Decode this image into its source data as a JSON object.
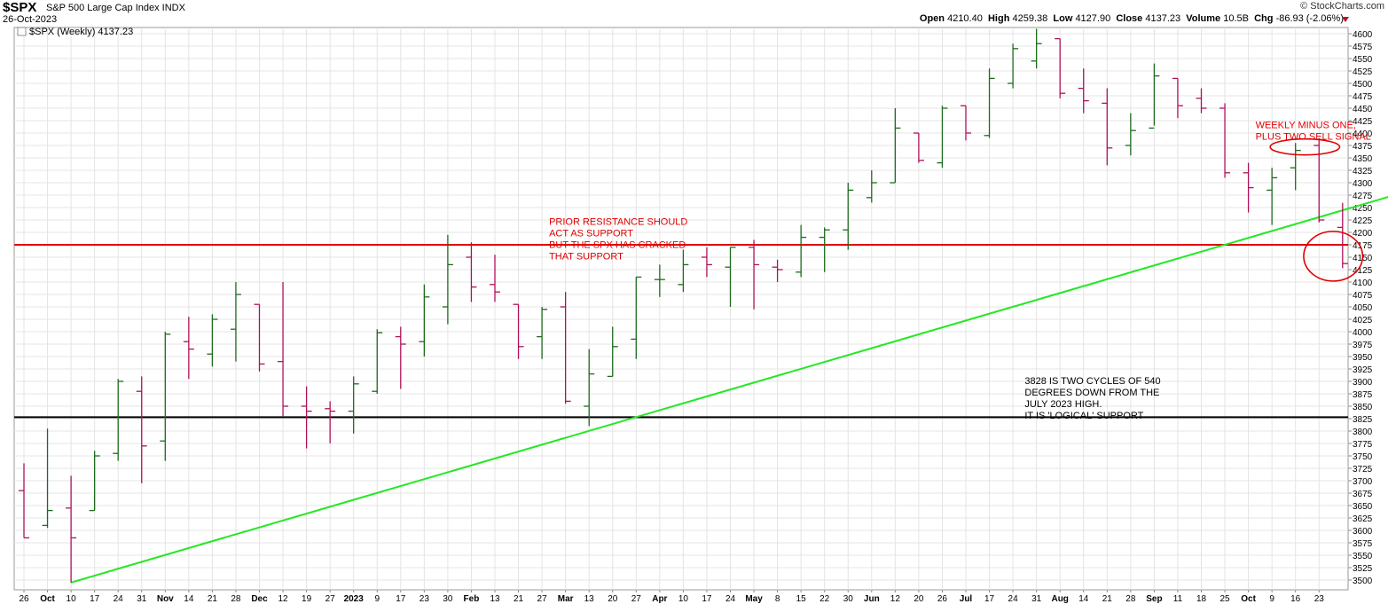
{
  "header": {
    "symbol": "$SPX",
    "name": "S&P 500 Large Cap Index  INDX",
    "date": "26-Oct-2023",
    "credit": "© StockCharts.com",
    "quote": {
      "open_label": "Open",
      "open": "4210.40",
      "high_label": "High",
      "high": "4259.38",
      "low_label": "Low",
      "low": "4127.90",
      "close_label": "Close",
      "close": "4137.23",
      "volume_label": "Volume",
      "volume": "10.5B",
      "chg_label": "Chg",
      "chg": "-86.93 (-2.06%)"
    }
  },
  "colors": {
    "up": "#1c6b1c",
    "down": "#b0105a",
    "resistance": "#e00000",
    "trend": "#22e822",
    "support": "#000000",
    "annotation": "#e00000"
  },
  "chart_data": {
    "type": "ohlc",
    "legend": "$SPX (Weekly) 4137.23",
    "ylim": [
      3490,
      4610
    ],
    "yticks": [
      3500,
      3525,
      3550,
      3575,
      3600,
      3625,
      3650,
      3675,
      3700,
      3725,
      3750,
      3775,
      3800,
      3825,
      3850,
      3875,
      3900,
      3925,
      3950,
      3975,
      4000,
      4025,
      4050,
      4075,
      4100,
      4125,
      4150,
      4175,
      4200,
      4225,
      4250,
      4275,
      4300,
      4325,
      4350,
      4375,
      4400,
      4425,
      4450,
      4475,
      4500,
      4525,
      4550,
      4575,
      4600
    ],
    "xticks": [
      {
        "i": 0,
        "label": "26",
        "bold": false
      },
      {
        "i": 1,
        "label": "Oct",
        "bold": true
      },
      {
        "i": 2,
        "label": "10",
        "bold": false
      },
      {
        "i": 3,
        "label": "17",
        "bold": false
      },
      {
        "i": 4,
        "label": "24",
        "bold": false
      },
      {
        "i": 5,
        "label": "31",
        "bold": false
      },
      {
        "i": 6,
        "label": "Nov",
        "bold": true
      },
      {
        "i": 7,
        "label": "14",
        "bold": false
      },
      {
        "i": 8,
        "label": "21",
        "bold": false
      },
      {
        "i": 9,
        "label": "28",
        "bold": false
      },
      {
        "i": 10,
        "label": "Dec",
        "bold": true
      },
      {
        "i": 11,
        "label": "12",
        "bold": false
      },
      {
        "i": 12,
        "label": "19",
        "bold": false
      },
      {
        "i": 13,
        "label": "27",
        "bold": false
      },
      {
        "i": 14,
        "label": "2023",
        "bold": true
      },
      {
        "i": 15,
        "label": "9",
        "bold": false
      },
      {
        "i": 16,
        "label": "17",
        "bold": false
      },
      {
        "i": 17,
        "label": "23",
        "bold": false
      },
      {
        "i": 18,
        "label": "30",
        "bold": false
      },
      {
        "i": 19,
        "label": "Feb",
        "bold": true
      },
      {
        "i": 20,
        "label": "13",
        "bold": false
      },
      {
        "i": 21,
        "label": "21",
        "bold": false
      },
      {
        "i": 22,
        "label": "27",
        "bold": false
      },
      {
        "i": 23,
        "label": "Mar",
        "bold": true
      },
      {
        "i": 24,
        "label": "13",
        "bold": false
      },
      {
        "i": 25,
        "label": "20",
        "bold": false
      },
      {
        "i": 26,
        "label": "27",
        "bold": false
      },
      {
        "i": 27,
        "label": "Apr",
        "bold": true
      },
      {
        "i": 28,
        "label": "10",
        "bold": false
      },
      {
        "i": 29,
        "label": "17",
        "bold": false
      },
      {
        "i": 30,
        "label": "24",
        "bold": false
      },
      {
        "i": 31,
        "label": "May",
        "bold": true
      },
      {
        "i": 32,
        "label": "8",
        "bold": false
      },
      {
        "i": 33,
        "label": "15",
        "bold": false
      },
      {
        "i": 34,
        "label": "22",
        "bold": false
      },
      {
        "i": 35,
        "label": "30",
        "bold": false
      },
      {
        "i": 36,
        "label": "Jun",
        "bold": true
      },
      {
        "i": 37,
        "label": "12",
        "bold": false
      },
      {
        "i": 38,
        "label": "20",
        "bold": false
      },
      {
        "i": 39,
        "label": "26",
        "bold": false
      },
      {
        "i": 40,
        "label": "Jul",
        "bold": true
      },
      {
        "i": 41,
        "label": "17",
        "bold": false
      },
      {
        "i": 42,
        "label": "24",
        "bold": false
      },
      {
        "i": 43,
        "label": "31",
        "bold": false
      },
      {
        "i": 44,
        "label": "Aug",
        "bold": true
      },
      {
        "i": 45,
        "label": "14",
        "bold": false
      },
      {
        "i": 46,
        "label": "21",
        "bold": false
      },
      {
        "i": 47,
        "label": "28",
        "bold": false
      },
      {
        "i": 48,
        "label": "Sep",
        "bold": true
      },
      {
        "i": 49,
        "label": "11",
        "bold": false
      },
      {
        "i": 50,
        "label": "18",
        "bold": false
      },
      {
        "i": 51,
        "label": "25",
        "bold": false
      },
      {
        "i": 52,
        "label": "Oct",
        "bold": true
      },
      {
        "i": 53,
        "label": "9",
        "bold": false
      },
      {
        "i": 54,
        "label": "16",
        "bold": false
      },
      {
        "i": 55,
        "label": "23",
        "bold": false
      }
    ],
    "bars": [
      {
        "i": 0,
        "o": 3680,
        "h": 3735,
        "l": 3585,
        "c": 3585
      },
      {
        "i": 1,
        "o": 3610,
        "h": 3805,
        "l": 3605,
        "c": 3640
      },
      {
        "i": 2,
        "o": 3645,
        "h": 3710,
        "l": 3495,
        "c": 3585
      },
      {
        "i": 3,
        "o": 3640,
        "h": 3760,
        "l": 3640,
        "c": 3750
      },
      {
        "i": 4,
        "o": 3755,
        "h": 3905,
        "l": 3740,
        "c": 3900
      },
      {
        "i": 5,
        "o": 3880,
        "h": 3910,
        "l": 3695,
        "c": 3770
      },
      {
        "i": 6,
        "o": 3780,
        "h": 4000,
        "l": 3740,
        "c": 3995
      },
      {
        "i": 7,
        "o": 3980,
        "h": 4030,
        "l": 3905,
        "c": 3965
      },
      {
        "i": 8,
        "o": 3955,
        "h": 4035,
        "l": 3930,
        "c": 4025
      },
      {
        "i": 9,
        "o": 4005,
        "h": 4100,
        "l": 3940,
        "c": 4075
      },
      {
        "i": 10,
        "o": 4055,
        "h": 4055,
        "l": 3920,
        "c": 3935
      },
      {
        "i": 11,
        "o": 3940,
        "h": 4100,
        "l": 3830,
        "c": 3850
      },
      {
        "i": 12,
        "o": 3850,
        "h": 3890,
        "l": 3765,
        "c": 3840
      },
      {
        "i": 13,
        "o": 3845,
        "h": 3860,
        "l": 3775,
        "c": 3840
      },
      {
        "i": 14,
        "o": 3840,
        "h": 3910,
        "l": 3795,
        "c": 3895
      },
      {
        "i": 15,
        "o": 3880,
        "h": 4005,
        "l": 3875,
        "c": 3998
      },
      {
        "i": 16,
        "o": 3990,
        "h": 4010,
        "l": 3885,
        "c": 3975
      },
      {
        "i": 17,
        "o": 3980,
        "h": 4095,
        "l": 3950,
        "c": 4070
      },
      {
        "i": 18,
        "o": 4050,
        "h": 4195,
        "l": 4015,
        "c": 4135
      },
      {
        "i": 19,
        "o": 4150,
        "h": 4180,
        "l": 4060,
        "c": 4090
      },
      {
        "i": 20,
        "o": 4095,
        "h": 4155,
        "l": 4060,
        "c": 4080
      },
      {
        "i": 21,
        "o": 4055,
        "h": 4055,
        "l": 3945,
        "c": 3970
      },
      {
        "i": 22,
        "o": 3990,
        "h": 4050,
        "l": 3945,
        "c": 4045
      },
      {
        "i": 23,
        "o": 4050,
        "h": 4080,
        "l": 3855,
        "c": 3860
      },
      {
        "i": 24,
        "o": 3850,
        "h": 3965,
        "l": 3810,
        "c": 3915
      },
      {
        "i": 25,
        "o": 3910,
        "h": 4010,
        "l": 3910,
        "c": 3970
      },
      {
        "i": 26,
        "o": 3985,
        "h": 4110,
        "l": 3945,
        "c": 4110
      },
      {
        "i": 27,
        "o": 4105,
        "h": 4135,
        "l": 4070,
        "c": 4105
      },
      {
        "i": 28,
        "o": 4095,
        "h": 4165,
        "l": 4080,
        "c": 4135
      },
      {
        "i": 29,
        "o": 4150,
        "h": 4170,
        "l": 4110,
        "c": 4135
      },
      {
        "i": 30,
        "o": 4130,
        "h": 4170,
        "l": 4050,
        "c": 4170
      },
      {
        "i": 31,
        "o": 4170,
        "h": 4185,
        "l": 4045,
        "c": 4135
      },
      {
        "i": 32,
        "o": 4130,
        "h": 4145,
        "l": 4100,
        "c": 4125
      },
      {
        "i": 33,
        "o": 4120,
        "h": 4215,
        "l": 4110,
        "c": 4190
      },
      {
        "i": 34,
        "o": 4190,
        "h": 4210,
        "l": 4120,
        "c": 4205
      },
      {
        "i": 35,
        "o": 4205,
        "h": 4300,
        "l": 4165,
        "c": 4285
      },
      {
        "i": 36,
        "o": 4270,
        "h": 4325,
        "l": 4260,
        "c": 4300
      },
      {
        "i": 37,
        "o": 4300,
        "h": 4450,
        "l": 4300,
        "c": 4410
      },
      {
        "i": 38,
        "o": 4400,
        "h": 4400,
        "l": 4340,
        "c": 4345
      },
      {
        "i": 39,
        "o": 4340,
        "h": 4455,
        "l": 4330,
        "c": 4450
      },
      {
        "i": 40,
        "o": 4455,
        "h": 4455,
        "l": 4385,
        "c": 4400
      },
      {
        "i": 41,
        "o": 4395,
        "h": 4530,
        "l": 4390,
        "c": 4510
      },
      {
        "i": 42,
        "o": 4500,
        "h": 4580,
        "l": 4490,
        "c": 4570
      },
      {
        "i": 43,
        "o": 4545,
        "h": 4610,
        "l": 4530,
        "c": 4580
      },
      {
        "i": 44,
        "o": 4590,
        "h": 4590,
        "l": 4470,
        "c": 4480
      },
      {
        "i": 45,
        "o": 4490,
        "h": 4530,
        "l": 4440,
        "c": 4465
      },
      {
        "i": 46,
        "o": 4460,
        "h": 4490,
        "l": 4335,
        "c": 4370
      },
      {
        "i": 47,
        "o": 4375,
        "h": 4440,
        "l": 4355,
        "c": 4405
      },
      {
        "i": 48,
        "o": 4410,
        "h": 4540,
        "l": 4415,
        "c": 4515
      },
      {
        "i": 49,
        "o": 4510,
        "h": 4510,
        "l": 4430,
        "c": 4455
      },
      {
        "i": 50,
        "o": 4470,
        "h": 4490,
        "l": 4440,
        "c": 4450
      },
      {
        "i": 51,
        "o": 4450,
        "h": 4460,
        "l": 4310,
        "c": 4320
      },
      {
        "i": 52,
        "o": 4320,
        "h": 4340,
        "l": 4240,
        "c": 4290
      },
      {
        "i": 53,
        "o": 4285,
        "h": 4330,
        "l": 4215,
        "c": 4310
      },
      {
        "i": 54,
        "o": 4330,
        "h": 4380,
        "l": 4285,
        "c": 4365
      },
      {
        "i": 55,
        "o": 4375,
        "h": 4390,
        "l": 4220,
        "c": 4225
      },
      {
        "i": 56,
        "o": 4210,
        "h": 4259.38,
        "l": 4127.9,
        "c": 4137.23
      }
    ],
    "reference_lines": [
      {
        "name": "resistance-line",
        "value": 4175,
        "color": "#e00000"
      },
      {
        "name": "logical-support-line",
        "value": 3828,
        "color": "#000000"
      }
    ],
    "trendline": {
      "from": {
        "i": 2,
        "v": 3495
      },
      "to": {
        "i": 58.2,
        "v": 4275
      }
    },
    "annotations": [
      {
        "name": "resistance-note",
        "lines": [
          "PRIOR RESISTANCE SHOULD",
          "ACT AS SUPPORT",
          "BUT THE SPX HAS CRACKED",
          "THAT SUPPORT"
        ],
        "at": {
          "i": 22.3,
          "v": 4215
        },
        "color": "#e00000"
      },
      {
        "name": "sell-signal-note",
        "lines": [
          "WEEKLY MINUS ONE,",
          "PLUS TWO SELL SIGNAL"
        ],
        "at": {
          "i": 52.3,
          "v": 4410
        },
        "color": "#e00000"
      },
      {
        "name": "support-note",
        "lines": [
          "3828 IS TWO CYCLES OF 540",
          "DEGREES DOWN FROM THE",
          "JULY 2023 HIGH.",
          "IT IS 'LOGICAL' SUPPORT"
        ],
        "at": {
          "i": 42.5,
          "v": 3895
        },
        "color": "#000000"
      }
    ],
    "highlight_ellipses": [
      {
        "name": "sell-signal-ellipse",
        "center": {
          "i": 54.4,
          "v": 4372
        },
        "ri": 2.8,
        "rv": 16
      },
      {
        "name": "breakdown-ellipse",
        "center": {
          "i": 55.6,
          "v": 4152
        },
        "ri": 1.9,
        "rv": 50
      }
    ]
  }
}
